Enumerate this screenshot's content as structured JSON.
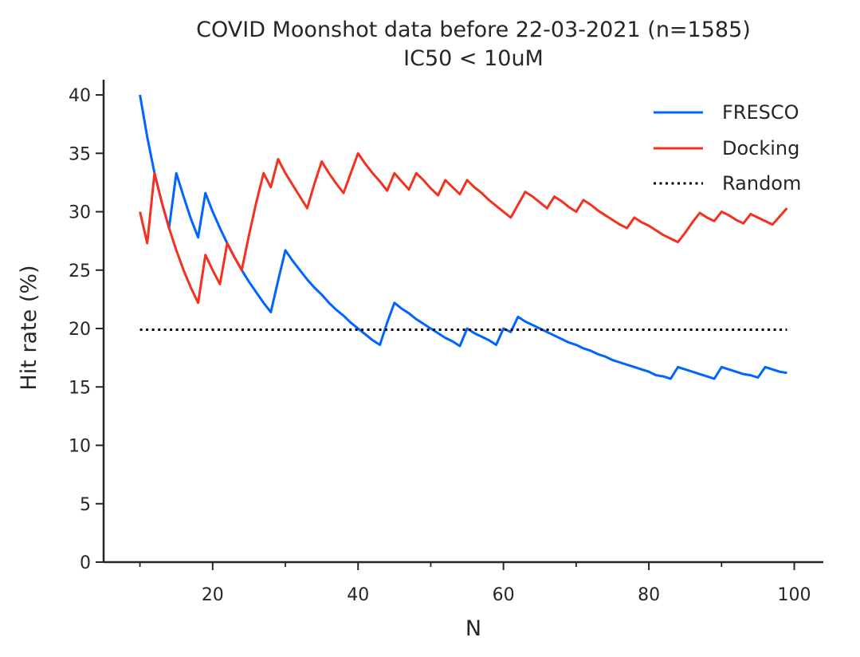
{
  "chart_data": {
    "type": "line",
    "title": "COVID Moonshot data before 22-03-2021 (n=1585)",
    "subtitle": "IC50 < 10uM",
    "xlabel": "N",
    "ylabel": "Hit rate (%)",
    "xlim": [
      5,
      104
    ],
    "ylim": [
      0,
      41.3
    ],
    "x_major_ticks": [
      20,
      40,
      60,
      80,
      100
    ],
    "x_minor_ticks": [
      10,
      30,
      50,
      70,
      90
    ],
    "y_ticks": [
      0,
      5,
      10,
      15,
      20,
      25,
      30,
      35,
      40
    ],
    "grid": false,
    "legend_position": "top-right",
    "series": [
      {
        "name": "FRESCO",
        "color": "#0064ff",
        "style": "solid",
        "points": [
          [
            10,
            40.0
          ],
          [
            11,
            36.4
          ],
          [
            12,
            33.3
          ],
          [
            13,
            30.8
          ],
          [
            14,
            28.6
          ],
          [
            15,
            33.3
          ],
          [
            16,
            31.3
          ],
          [
            17,
            29.4
          ],
          [
            18,
            27.8
          ],
          [
            19,
            31.6
          ],
          [
            20,
            30.0
          ],
          [
            21,
            28.6
          ],
          [
            22,
            27.3
          ],
          [
            23,
            26.1
          ],
          [
            24,
            25.0
          ],
          [
            25,
            24.0
          ],
          [
            26,
            23.1
          ],
          [
            27,
            22.2
          ],
          [
            28,
            21.4
          ],
          [
            29,
            24.1
          ],
          [
            30,
            26.7
          ],
          [
            31,
            25.8
          ],
          [
            32,
            25.0
          ],
          [
            33,
            24.2
          ],
          [
            34,
            23.5
          ],
          [
            35,
            22.9
          ],
          [
            36,
            22.2
          ],
          [
            37,
            21.6
          ],
          [
            38,
            21.1
          ],
          [
            39,
            20.5
          ],
          [
            40,
            20.0
          ],
          [
            41,
            19.5
          ],
          [
            42,
            19.0
          ],
          [
            43,
            18.6
          ],
          [
            44,
            20.5
          ],
          [
            45,
            22.2
          ],
          [
            46,
            21.7
          ],
          [
            47,
            21.3
          ],
          [
            48,
            20.8
          ],
          [
            49,
            20.4
          ],
          [
            50,
            20.0
          ],
          [
            51,
            19.6
          ],
          [
            52,
            19.2
          ],
          [
            53,
            18.9
          ],
          [
            54,
            18.5
          ],
          [
            55,
            20.0
          ],
          [
            56,
            19.6
          ],
          [
            57,
            19.3
          ],
          [
            58,
            19.0
          ],
          [
            59,
            18.6
          ],
          [
            60,
            20.0
          ],
          [
            61,
            19.7
          ],
          [
            62,
            21.0
          ],
          [
            63,
            20.6
          ],
          [
            64,
            20.3
          ],
          [
            65,
            20.0
          ],
          [
            66,
            19.7
          ],
          [
            67,
            19.4
          ],
          [
            68,
            19.1
          ],
          [
            69,
            18.8
          ],
          [
            70,
            18.6
          ],
          [
            71,
            18.3
          ],
          [
            72,
            18.1
          ],
          [
            73,
            17.8
          ],
          [
            74,
            17.6
          ],
          [
            75,
            17.3
          ],
          [
            76,
            17.1
          ],
          [
            77,
            16.9
          ],
          [
            78,
            16.7
          ],
          [
            79,
            16.5
          ],
          [
            80,
            16.3
          ],
          [
            81,
            16.0
          ],
          [
            82,
            15.9
          ],
          [
            83,
            15.7
          ],
          [
            84,
            16.7
          ],
          [
            85,
            16.5
          ],
          [
            86,
            16.3
          ],
          [
            87,
            16.1
          ],
          [
            88,
            15.9
          ],
          [
            89,
            15.7
          ],
          [
            90,
            16.7
          ],
          [
            91,
            16.5
          ],
          [
            92,
            16.3
          ],
          [
            93,
            16.1
          ],
          [
            94,
            16.0
          ],
          [
            95,
            15.8
          ],
          [
            96,
            16.7
          ],
          [
            97,
            16.5
          ],
          [
            98,
            16.3
          ],
          [
            99,
            16.2
          ]
        ]
      },
      {
        "name": "Docking",
        "color": "#f5301e",
        "style": "solid",
        "points": [
          [
            10,
            30.0
          ],
          [
            11,
            27.3
          ],
          [
            12,
            33.3
          ],
          [
            13,
            30.8
          ],
          [
            14,
            28.6
          ],
          [
            15,
            26.7
          ],
          [
            16,
            25.0
          ],
          [
            17,
            23.5
          ],
          [
            18,
            22.2
          ],
          [
            19,
            26.3
          ],
          [
            20,
            25.0
          ],
          [
            21,
            23.8
          ],
          [
            22,
            27.3
          ],
          [
            23,
            26.1
          ],
          [
            24,
            25.0
          ],
          [
            25,
            28.0
          ],
          [
            26,
            30.8
          ],
          [
            27,
            33.3
          ],
          [
            28,
            32.1
          ],
          [
            29,
            34.5
          ],
          [
            30,
            33.3
          ],
          [
            31,
            32.3
          ],
          [
            32,
            31.3
          ],
          [
            33,
            30.3
          ],
          [
            34,
            32.4
          ],
          [
            35,
            34.3
          ],
          [
            36,
            33.3
          ],
          [
            37,
            32.4
          ],
          [
            38,
            31.6
          ],
          [
            39,
            33.3
          ],
          [
            40,
            35.0
          ],
          [
            41,
            34.1
          ],
          [
            42,
            33.3
          ],
          [
            43,
            32.6
          ],
          [
            44,
            31.8
          ],
          [
            45,
            33.3
          ],
          [
            46,
            32.6
          ],
          [
            47,
            31.9
          ],
          [
            48,
            33.3
          ],
          [
            49,
            32.7
          ],
          [
            50,
            32.0
          ],
          [
            51,
            31.4
          ],
          [
            52,
            32.7
          ],
          [
            53,
            32.1
          ],
          [
            54,
            31.5
          ],
          [
            55,
            32.7
          ],
          [
            56,
            32.1
          ],
          [
            57,
            31.6
          ],
          [
            58,
            31.0
          ],
          [
            59,
            30.5
          ],
          [
            60,
            30.0
          ],
          [
            61,
            29.5
          ],
          [
            62,
            30.6
          ],
          [
            63,
            31.7
          ],
          [
            64,
            31.3
          ],
          [
            65,
            30.8
          ],
          [
            66,
            30.3
          ],
          [
            67,
            31.3
          ],
          [
            68,
            30.9
          ],
          [
            69,
            30.4
          ],
          [
            70,
            30.0
          ],
          [
            71,
            31.0
          ],
          [
            72,
            30.6
          ],
          [
            73,
            30.1
          ],
          [
            74,
            29.7
          ],
          [
            75,
            29.3
          ],
          [
            76,
            28.9
          ],
          [
            77,
            28.6
          ],
          [
            78,
            29.5
          ],
          [
            79,
            29.1
          ],
          [
            80,
            28.8
          ],
          [
            81,
            28.4
          ],
          [
            82,
            28.0
          ],
          [
            83,
            27.7
          ],
          [
            84,
            27.4
          ],
          [
            85,
            28.2
          ],
          [
            86,
            29.1
          ],
          [
            87,
            29.9
          ],
          [
            88,
            29.5
          ],
          [
            89,
            29.2
          ],
          [
            90,
            30.0
          ],
          [
            91,
            29.7
          ],
          [
            92,
            29.3
          ],
          [
            93,
            29.0
          ],
          [
            94,
            29.8
          ],
          [
            95,
            29.5
          ],
          [
            96,
            29.2
          ],
          [
            97,
            28.9
          ],
          [
            98,
            29.6
          ],
          [
            99,
            30.3
          ]
        ]
      },
      {
        "name": "Random",
        "color": "#000000",
        "style": "dotted",
        "points": [
          [
            10,
            19.9
          ],
          [
            99,
            19.9
          ]
        ]
      }
    ]
  }
}
